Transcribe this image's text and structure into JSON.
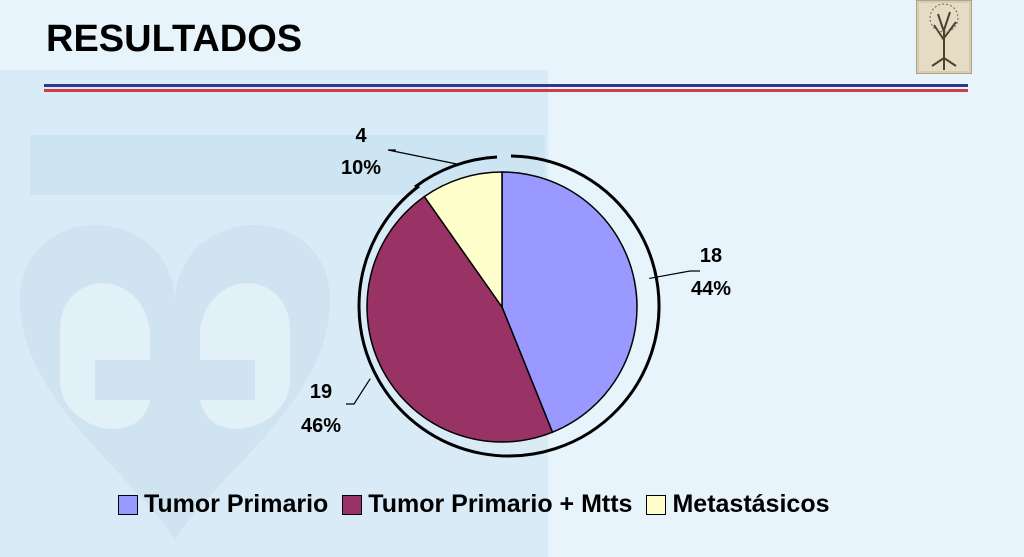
{
  "slide": {
    "title": "RESULTADOS",
    "colors": {
      "rule_top": "#2b3a8f",
      "rule_bottom": "#d23a4a",
      "background": "#e8f4fb"
    },
    "watermark": "heart-logo",
    "corner_image": "tree-illustration"
  },
  "chart_data": {
    "type": "pie",
    "title": "",
    "categories": [
      "Tumor Primario",
      "Tumor Primario + Mtts",
      "Metastásicos"
    ],
    "values": [
      18,
      19,
      4
    ],
    "percent_labels": [
      "44%",
      "46%",
      "10%"
    ],
    "count_labels": [
      "18",
      "19",
      "4"
    ],
    "colors": [
      "#9999ff",
      "#993366",
      "#ffffcc"
    ],
    "legend_position": "bottom",
    "start_angle_deg": 0,
    "direction": "clockwise"
  }
}
